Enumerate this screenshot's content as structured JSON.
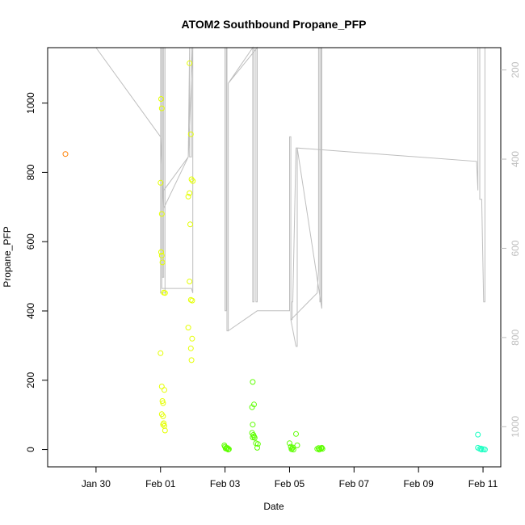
{
  "chart_data": {
    "type": "scatter",
    "title": "ATOM2 Southbound Propane_PFP",
    "xlabel": "Date",
    "ylabel": "Propane_PFP",
    "x_ticks": [
      "Jan 30",
      "Feb 01",
      "Feb 03",
      "Feb 05",
      "Feb 07",
      "Feb 09",
      "Feb 11"
    ],
    "x_tick_values": [
      0,
      2,
      4,
      6,
      8,
      10,
      12
    ],
    "xlim": [
      -1.5,
      12.55
    ],
    "ylim": [
      -50,
      1160
    ],
    "y_ticks": [
      0,
      200,
      400,
      600,
      800,
      1000
    ],
    "right_axis": {
      "ticks": [
        200,
        400,
        600,
        800,
        1000
      ],
      "ylim": [
        1090,
        150
      ],
      "color": "#bebebe"
    },
    "series": [
      {
        "color": "#ff7f00",
        "points": [
          [
            -0.95,
            853
          ]
        ]
      },
      {
        "color": "#e5ff00",
        "points": [
          [
            2.02,
            1012
          ],
          [
            2.04,
            985
          ],
          [
            2.0,
            770
          ],
          [
            2.04,
            680
          ],
          [
            2.02,
            570
          ],
          [
            2.04,
            560
          ],
          [
            2.06,
            540
          ],
          [
            2.1,
            453
          ],
          [
            2.14,
            452
          ],
          [
            2.0,
            278
          ],
          [
            2.04,
            182
          ],
          [
            2.06,
            140
          ],
          [
            2.08,
            134
          ],
          [
            2.12,
            172
          ],
          [
            2.04,
            102
          ],
          [
            2.08,
            96
          ],
          [
            2.1,
            76
          ],
          [
            2.12,
            68
          ],
          [
            2.14,
            55
          ],
          [
            2.08,
            72
          ],
          [
            2.9,
            1115
          ],
          [
            2.94,
            910
          ],
          [
            2.96,
            780
          ],
          [
            3.0,
            775
          ],
          [
            2.9,
            740
          ],
          [
            2.86,
            730
          ],
          [
            2.92,
            650
          ],
          [
            2.9,
            485
          ],
          [
            2.94,
            432
          ],
          [
            2.98,
            430
          ],
          [
            2.86,
            352
          ],
          [
            2.98,
            320
          ],
          [
            2.94,
            292
          ],
          [
            2.96,
            258
          ]
        ]
      },
      {
        "color": "#5dff00",
        "points": [
          [
            3.98,
            12
          ],
          [
            4.0,
            8
          ],
          [
            4.04,
            5
          ],
          [
            4.06,
            2
          ],
          [
            4.1,
            0
          ],
          [
            4.02,
            3
          ],
          [
            4.08,
            4
          ],
          [
            4.12,
            1
          ],
          [
            4.86,
            195
          ],
          [
            4.9,
            130
          ],
          [
            4.84,
            122
          ],
          [
            4.86,
            72
          ],
          [
            4.84,
            48
          ],
          [
            4.88,
            42
          ],
          [
            4.9,
            38
          ],
          [
            4.86,
            35
          ],
          [
            4.92,
            34
          ],
          [
            4.96,
            18
          ],
          [
            5.02,
            16
          ],
          [
            5.0,
            5
          ],
          [
            6.0,
            18
          ],
          [
            6.04,
            8
          ],
          [
            6.08,
            3
          ],
          [
            6.12,
            0
          ],
          [
            6.06,
            1
          ],
          [
            6.2,
            45
          ],
          [
            6.24,
            12
          ],
          [
            6.1,
            6
          ],
          [
            6.86,
            2
          ],
          [
            6.9,
            4
          ],
          [
            6.94,
            1
          ],
          [
            6.98,
            3
          ],
          [
            7.0,
            5
          ],
          [
            7.02,
            2
          ],
          [
            6.92,
            0
          ]
        ]
      },
      {
        "color": "#1cffc3",
        "points": [
          [
            11.84,
            43
          ],
          [
            11.84,
            5
          ],
          [
            11.9,
            2
          ],
          [
            11.96,
            0
          ],
          [
            12.02,
            1
          ],
          [
            12.06,
            0
          ],
          [
            11.94,
            3
          ]
        ]
      }
    ],
    "track": {
      "color": "#bebebe",
      "points": [
        [
          0,
          150
        ],
        [
          2.0,
          350
        ],
        [
          2.1,
          510
        ],
        [
          2.86,
          395
        ],
        [
          2.9,
          150
        ],
        [
          2.9,
          395
        ],
        [
          2.96,
          395
        ],
        [
          2.96,
          150
        ],
        [
          3.0,
          150
        ],
        [
          2.86,
          395
        ],
        [
          2.1,
          470
        ],
        [
          2.1,
          150
        ],
        [
          2.06,
          150
        ],
        [
          2.06,
          665
        ],
        [
          2.1,
          665
        ],
        [
          2.1,
          150
        ],
        [
          2.14,
          150
        ],
        [
          2.14,
          700
        ],
        [
          2.0,
          700
        ],
        [
          2.0,
          150
        ],
        [
          2.04,
          150
        ],
        [
          2.04,
          690
        ],
        [
          2.9,
          690
        ],
        [
          2.96,
          690
        ],
        [
          3.0,
          700
        ],
        [
          3.0,
          150
        ],
        [
          4.0,
          150
        ],
        [
          4.0,
          740
        ],
        [
          4.04,
          740
        ],
        [
          4.04,
          150
        ],
        [
          4.06,
          150
        ],
        [
          4.06,
          785
        ],
        [
          4.1,
          785
        ],
        [
          4.1,
          230
        ],
        [
          4.86,
          150
        ],
        [
          4.86,
          720
        ],
        [
          4.9,
          720
        ],
        [
          4.9,
          150
        ],
        [
          4.96,
          150
        ],
        [
          4.96,
          720
        ],
        [
          5.0,
          720
        ],
        [
          5.0,
          150
        ],
        [
          4.1,
          230
        ],
        [
          4.1,
          785
        ],
        [
          5.0,
          740
        ],
        [
          6.0,
          740
        ],
        [
          6.0,
          350
        ],
        [
          6.04,
          350
        ],
        [
          6.04,
          760
        ],
        [
          6.08,
          760
        ],
        [
          6.08,
          720
        ],
        [
          6.1,
          720
        ],
        [
          6.2,
          375
        ],
        [
          6.24,
          375
        ],
        [
          6.24,
          820
        ],
        [
          6.2,
          820
        ],
        [
          6.04,
          760
        ],
        [
          6.86,
          700
        ],
        [
          6.9,
          650
        ],
        [
          6.9,
          150
        ],
        [
          6.94,
          150
        ],
        [
          6.94,
          720
        ],
        [
          6.98,
          720
        ],
        [
          6.98,
          150
        ],
        [
          7.0,
          150
        ],
        [
          7.0,
          735
        ],
        [
          6.24,
          375
        ],
        [
          11.8,
          405
        ],
        [
          11.84,
          470
        ],
        [
          11.84,
          150
        ],
        [
          11.9,
          150
        ],
        [
          11.9,
          490
        ],
        [
          11.96,
          490
        ],
        [
          12.02,
          720
        ],
        [
          12.06,
          720
        ],
        [
          12.06,
          150
        ],
        [
          12.1,
          150
        ]
      ]
    }
  }
}
